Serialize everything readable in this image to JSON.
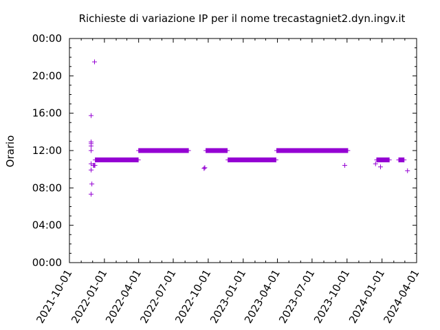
{
  "chart_data": {
    "type": "scatter",
    "title": "Richieste di variazione IP per il nome trecastagniet2.dyn.ingv.it",
    "xlabel": "",
    "ylabel": "Orario",
    "xlim": [
      "2021-10-01",
      "2024-04-01"
    ],
    "ylim": [
      "00:00",
      "24:00"
    ],
    "x_ticks": [
      "2021-10-01",
      "2022-01-01",
      "2022-04-01",
      "2022-07-01",
      "2022-10-01",
      "2023-01-01",
      "2023-04-01",
      "2023-07-01",
      "2023-10-01",
      "2024-01-01",
      "2024-04-01"
    ],
    "y_ticks": [
      "00:00",
      "04:00",
      "08:00",
      "12:00",
      "16:00",
      "20:00",
      "00:00"
    ],
    "marker": "+",
    "color": "#9400d3",
    "grid": false,
    "points": [
      {
        "x": "2021-11-27",
        "y": "07:20"
      },
      {
        "x": "2021-11-27",
        "y": "09:55"
      },
      {
        "x": "2021-11-27",
        "y": "10:35"
      },
      {
        "x": "2021-11-27",
        "y": "12:00"
      },
      {
        "x": "2021-11-27",
        "y": "12:30"
      },
      {
        "x": "2021-11-27",
        "y": "12:45"
      },
      {
        "x": "2021-11-27",
        "y": "12:55"
      },
      {
        "x": "2021-11-27",
        "y": "15:45"
      },
      {
        "x": "2021-11-29",
        "y": "08:25"
      },
      {
        "x": "2021-12-03",
        "y": "10:25"
      },
      {
        "x": "2021-12-05",
        "y": "10:25"
      },
      {
        "x": "2021-12-07",
        "y": "10:25"
      },
      {
        "x": "2021-12-06",
        "y": "21:30"
      },
      {
        "x": "2022-09-20",
        "y": "10:05"
      },
      {
        "x": "2022-09-22",
        "y": "10:10"
      },
      {
        "x": "2023-09-25",
        "y": "10:25"
      },
      {
        "x": "2023-12-15",
        "y": "10:35"
      },
      {
        "x": "2023-12-28",
        "y": "10:15"
      },
      {
        "x": "2024-03-08",
        "y": "09:50"
      }
    ],
    "bands": [
      {
        "x_start": "2021-12-08",
        "x_end": "2022-03-31",
        "y": "11:00"
      },
      {
        "x_start": "2022-04-01",
        "x_end": "2022-08-10",
        "y": "12:00"
      },
      {
        "x_start": "2022-09-25",
        "x_end": "2022-11-20",
        "y": "12:00"
      },
      {
        "x_start": "2022-11-22",
        "x_end": "2023-03-28",
        "y": "11:00"
      },
      {
        "x_start": "2023-03-30",
        "x_end": "2023-10-03",
        "y": "12:00"
      },
      {
        "x_start": "2023-12-18",
        "x_end": "2024-01-20",
        "y": "11:00"
      },
      {
        "x_start": "2024-02-14",
        "x_end": "2024-02-28",
        "y": "11:00"
      }
    ]
  }
}
